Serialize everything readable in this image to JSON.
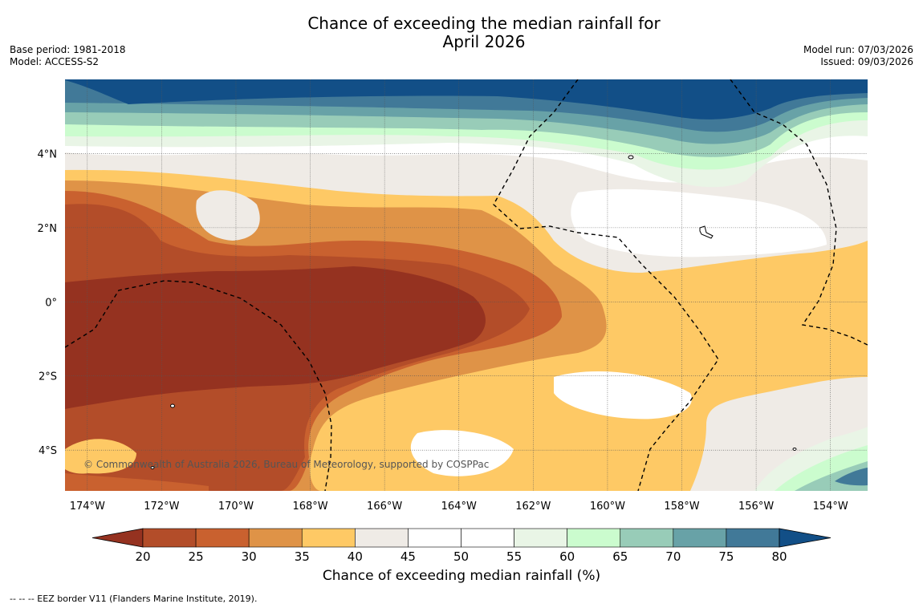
{
  "title": {
    "line1": "Chance of exceeding the median rainfall for",
    "line2": "April 2026"
  },
  "meta": {
    "base_period": "Base period: 1981-2018",
    "model": "Model: ACCESS-S2",
    "model_run": "Model run: 07/03/2026",
    "issued": "Issued: 09/03/2026"
  },
  "map": {
    "lon_range": [
      -174.6,
      -153
    ],
    "lat_range": [
      -5.1,
      6.0
    ],
    "lat_ticks": [
      {
        "value": 4,
        "label": "4°N"
      },
      {
        "value": 2,
        "label": "2°N"
      },
      {
        "value": 0,
        "label": "0°"
      },
      {
        "value": -2,
        "label": "2°S"
      },
      {
        "value": -4,
        "label": "4°S"
      }
    ],
    "lon_ticks": [
      {
        "value": -174,
        "label": "174°W"
      },
      {
        "value": -172,
        "label": "172°W"
      },
      {
        "value": -170,
        "label": "170°W"
      },
      {
        "value": -168,
        "label": "168°W"
      },
      {
        "value": -166,
        "label": "166°W"
      },
      {
        "value": -164,
        "label": "164°W"
      },
      {
        "value": -162,
        "label": "162°W"
      },
      {
        "value": -160,
        "label": "160°W"
      },
      {
        "value": -158,
        "label": "158°W"
      },
      {
        "value": -156,
        "label": "156°W"
      },
      {
        "value": -154,
        "label": "154°W"
      }
    ],
    "copyright": "© Commonwealth of Australia 2026, Bureau of Meteorology, supported by COSPPac"
  },
  "colorbar": {
    "ticks": [
      "20",
      "25",
      "30",
      "35",
      "40",
      "45",
      "50",
      "55",
      "60",
      "65",
      "70",
      "75",
      "80"
    ],
    "colors": [
      "#953220",
      "#b34d29",
      "#c9612f",
      "#df9347",
      "#fec965",
      "#efebe6",
      "#ffffff",
      "#ffffff",
      "#e9f5e6",
      "#cbfcce",
      "#98ccb8",
      "#68a2a7",
      "#417998",
      "#124f87"
    ],
    "label": "Chance of exceeding median rainfall (%)"
  },
  "footnote": "--  --  -- EEZ border V11 (Flanders Marine Institute, 2019)."
}
